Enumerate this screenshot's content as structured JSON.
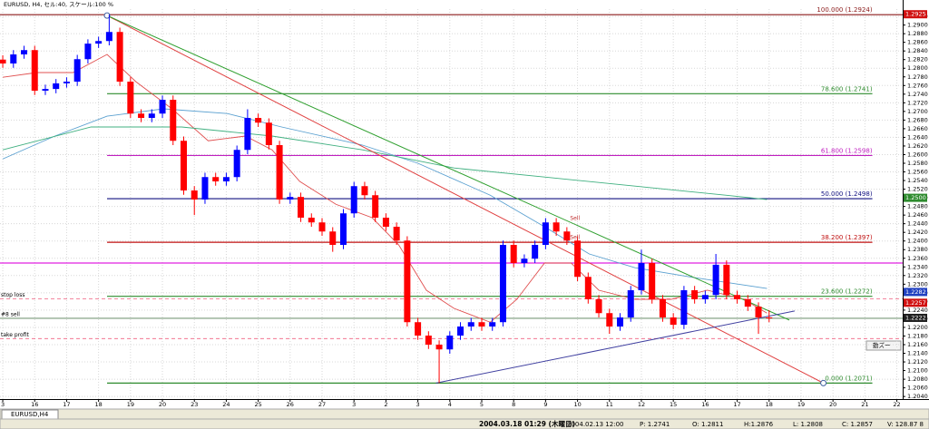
{
  "chart_data": {
    "type": "candlestick",
    "title": "EURUSD, H4, セル:40, スケール:100 %",
    "x": [
      0,
      1,
      2,
      3,
      4,
      5,
      6,
      7,
      8,
      9,
      10,
      11,
      12,
      13,
      14,
      15,
      16,
      17,
      18,
      19,
      20,
      21,
      22,
      23,
      24,
      25,
      26,
      27,
      28,
      29,
      30,
      31,
      32,
      33,
      34,
      35,
      36,
      37,
      38,
      39,
      40,
      41,
      42,
      43,
      44,
      45,
      46,
      47,
      48,
      49,
      50,
      51,
      52,
      53,
      54,
      55,
      56,
      57,
      58,
      59,
      60,
      61,
      62,
      63,
      64,
      65,
      66,
      67,
      68,
      69,
      70,
      71,
      72
    ],
    "open": [
      1.282,
      1.2811,
      1.2832,
      1.2842,
      1.2748,
      1.2752,
      1.2765,
      1.2769,
      1.2821,
      1.2857,
      1.2863,
      1.2884,
      1.2769,
      1.2695,
      1.2685,
      1.2695,
      1.2727,
      1.2632,
      1.2517,
      1.2496,
      1.2548,
      1.2538,
      1.2548,
      1.2611,
      1.2685,
      1.2674,
      1.2622,
      1.2496,
      1.2502,
      1.2454,
      1.2443,
      1.2422,
      1.2391,
      1.2464,
      1.2527,
      1.2506,
      1.2454,
      1.2433,
      1.2401,
      1.2212,
      1.2181,
      1.216,
      1.2149,
      1.2181,
      1.2202,
      1.2212,
      1.2202,
      1.2212,
      1.2391,
      1.2349,
      1.2359,
      1.2391,
      1.2443,
      1.2422,
      1.2401,
      1.2317,
      1.2265,
      1.2233,
      1.2202,
      1.2223,
      1.2286,
      1.2349,
      1.2265,
      1.2223,
      1.2206,
      1.2286,
      1.2265,
      1.2275,
      1.2345,
      1.2275,
      1.2265,
      1.2248,
      1.2223
    ],
    "high": [
      1.283,
      1.2842,
      1.2852,
      1.2852,
      1.2762,
      1.2775,
      1.2779,
      1.2831,
      1.2867,
      1.2873,
      1.2924,
      1.2894,
      1.2779,
      1.2705,
      1.2705,
      1.2737,
      1.2737,
      1.2642,
      1.2527,
      1.2558,
      1.2558,
      1.2558,
      1.2621,
      1.2705,
      1.2695,
      1.2684,
      1.2632,
      1.2512,
      1.2512,
      1.2464,
      1.2453,
      1.2432,
      1.2474,
      1.2537,
      1.2537,
      1.2516,
      1.2464,
      1.2443,
      1.2411,
      1.2222,
      1.2191,
      1.217,
      1.2191,
      1.2212,
      1.2222,
      1.2222,
      1.2222,
      1.2401,
      1.2401,
      1.2369,
      1.2401,
      1.2453,
      1.2453,
      1.2432,
      1.2411,
      1.2327,
      1.2275,
      1.2243,
      1.2233,
      1.2296,
      1.238,
      1.2359,
      1.2275,
      1.2233,
      1.2296,
      1.2296,
      1.2285,
      1.237,
      1.2355,
      1.2285,
      1.2275,
      1.2258,
      1.224
    ],
    "low": [
      1.2801,
      1.2801,
      1.2822,
      1.2738,
      1.2738,
      1.2742,
      1.2755,
      1.2759,
      1.2811,
      1.2847,
      1.2853,
      1.2759,
      1.2685,
      1.2675,
      1.2675,
      1.2685,
      1.2622,
      1.2507,
      1.246,
      1.2486,
      1.2528,
      1.2528,
      1.2538,
      1.2601,
      1.2664,
      1.2612,
      1.2486,
      1.2486,
      1.2444,
      1.2433,
      1.2412,
      1.2375,
      1.2381,
      1.2454,
      1.2496,
      1.2444,
      1.2423,
      1.2391,
      1.2202,
      1.2171,
      1.215,
      1.2071,
      1.2139,
      1.2171,
      1.2192,
      1.2192,
      1.2192,
      1.2202,
      1.2339,
      1.2339,
      1.2349,
      1.2381,
      1.2412,
      1.2391,
      1.2307,
      1.2255,
      1.2223,
      1.2185,
      1.2192,
      1.2213,
      1.2276,
      1.2255,
      1.2213,
      1.2196,
      1.2196,
      1.2255,
      1.2255,
      1.2265,
      1.2265,
      1.2255,
      1.2238,
      1.2185,
      1.2212
    ],
    "close": [
      1.2811,
      1.2832,
      1.2842,
      1.2748,
      1.2752,
      1.2765,
      1.2769,
      1.2821,
      1.2857,
      1.2863,
      1.2884,
      1.2769,
      1.2695,
      1.2685,
      1.2695,
      1.2727,
      1.2632,
      1.2517,
      1.2496,
      1.2548,
      1.2538,
      1.2548,
      1.2611,
      1.2685,
      1.2674,
      1.2622,
      1.2496,
      1.2502,
      1.2454,
      1.2443,
      1.2422,
      1.2391,
      1.2464,
      1.2527,
      1.2506,
      1.2454,
      1.2433,
      1.2401,
      1.2212,
      1.2181,
      1.216,
      1.2149,
      1.2181,
      1.2202,
      1.2212,
      1.2202,
      1.2212,
      1.2391,
      1.2349,
      1.2359,
      1.2391,
      1.2443,
      1.2422,
      1.2401,
      1.2317,
      1.2265,
      1.2233,
      1.2202,
      1.2223,
      1.2286,
      1.2349,
      1.2265,
      1.2223,
      1.2206,
      1.2286,
      1.2265,
      1.2275,
      1.2345,
      1.2275,
      1.2265,
      1.2248,
      1.2223,
      1.2222
    ],
    "up_color": "#0000ff",
    "down_color": "#ff0000",
    "xlim": [
      -0.26,
      84.55
    ],
    "xticks": [
      {
        "value": 0,
        "label": "3"
      },
      {
        "value": 3,
        "label": "16"
      },
      {
        "value": 6,
        "label": "17"
      },
      {
        "value": 9,
        "label": "18"
      },
      {
        "value": 12,
        "label": "19"
      },
      {
        "value": 15,
        "label": "20"
      },
      {
        "value": 18,
        "label": "23"
      },
      {
        "value": 21,
        "label": "24"
      },
      {
        "value": 24,
        "label": "25"
      },
      {
        "value": 27,
        "label": "26"
      },
      {
        "value": 30,
        "label": "27"
      },
      {
        "value": 33,
        "label": "3"
      },
      {
        "value": 36,
        "label": "2"
      },
      {
        "value": 39,
        "label": "3"
      },
      {
        "value": 42,
        "label": "4"
      },
      {
        "value": 45,
        "label": "5"
      },
      {
        "value": 48,
        "label": "8"
      },
      {
        "value": 51,
        "label": "9"
      },
      {
        "value": 54,
        "label": "10"
      },
      {
        "value": 57,
        "label": "11"
      },
      {
        "value": 60,
        "label": "12"
      },
      {
        "value": 63,
        "label": "15"
      },
      {
        "value": 66,
        "label": "16"
      },
      {
        "value": 69,
        "label": "17"
      },
      {
        "value": 72,
        "label": "18"
      },
      {
        "value": 75,
        "label": "19"
      },
      {
        "value": 78,
        "label": "20"
      },
      {
        "value": 81,
        "label": "21"
      },
      {
        "value": 84,
        "label": "22"
      }
    ],
    "ylim": [
      1.2034,
      1.2937
    ],
    "yticks": [
      {
        "value": 1.204,
        "label": "1.2040"
      },
      {
        "value": 1.206,
        "label": "1.2060"
      },
      {
        "value": 1.208,
        "label": "1.2080"
      },
      {
        "value": 1.21,
        "label": "1.2100"
      },
      {
        "value": 1.212,
        "label": "1.2120"
      },
      {
        "value": 1.214,
        "label": "1.2140"
      },
      {
        "value": 1.216,
        "label": "1.2160"
      },
      {
        "value": 1.218,
        "label": "1.2180"
      },
      {
        "value": 1.22,
        "label": "1.2200"
      },
      {
        "value": 1.222,
        "label": "1.2220"
      },
      {
        "value": 1.224,
        "label": "1.2240"
      },
      {
        "value": 1.226,
        "label": "1.2260"
      },
      {
        "value": 1.228,
        "label": "1.2280"
      },
      {
        "value": 1.23,
        "label": "1.2300"
      },
      {
        "value": 1.232,
        "label": "1.2320"
      },
      {
        "value": 1.234,
        "label": "1.2340"
      },
      {
        "value": 1.236,
        "label": "1.2360"
      },
      {
        "value": 1.238,
        "label": "1.2380"
      },
      {
        "value": 1.24,
        "label": "1.2400"
      },
      {
        "value": 1.242,
        "label": "1.2420"
      },
      {
        "value": 1.244,
        "label": "1.2440"
      },
      {
        "value": 1.246,
        "label": "1.2460"
      },
      {
        "value": 1.248,
        "label": "1.2480"
      },
      {
        "value": 1.25,
        "label": "1.2500"
      },
      {
        "value": 1.252,
        "label": "1.2520"
      },
      {
        "value": 1.254,
        "label": "1.2540"
      },
      {
        "value": 1.256,
        "label": "1.2560"
      },
      {
        "value": 1.258,
        "label": "1.2580"
      },
      {
        "value": 1.26,
        "label": "1.2600"
      },
      {
        "value": 1.262,
        "label": "1.2620"
      },
      {
        "value": 1.264,
        "label": "1.2640"
      },
      {
        "value": 1.266,
        "label": "1.2660"
      },
      {
        "value": 1.268,
        "label": "1.2680"
      },
      {
        "value": 1.27,
        "label": "1.2700"
      },
      {
        "value": 1.272,
        "label": "1.2720"
      },
      {
        "value": 1.274,
        "label": "1.2740"
      },
      {
        "value": 1.276,
        "label": "1.2760"
      },
      {
        "value": 1.278,
        "label": "1.2780"
      },
      {
        "value": 1.28,
        "label": "1.2800"
      },
      {
        "value": 1.282,
        "label": "1.2820"
      },
      {
        "value": 1.284,
        "label": "1.2840"
      },
      {
        "value": 1.286,
        "label": "1.2860"
      },
      {
        "value": 1.288,
        "label": "1.2880"
      },
      {
        "value": 1.29,
        "label": "1.2900"
      },
      {
        "value": 1.292,
        "label": "1.2920"
      }
    ],
    "grid": true,
    "lines": [
      {
        "color": "#e05050",
        "x": [
          0,
          3.2,
          6.6,
          9.8,
          12.5,
          15.9,
          19.3,
          22.8,
          25.3,
          27.9,
          31.3,
          34.7,
          37.2,
          39.8,
          42.4,
          45.8,
          48.3,
          50.9,
          53.4,
          56.0,
          59.4,
          62.8,
          66.2,
          69.6,
          71.8
        ],
        "values": [
          1.2779,
          1.279,
          1.279,
          1.2832,
          1.2769,
          1.2706,
          1.2632,
          1.2643,
          1.2611,
          1.2538,
          1.2485,
          1.2454,
          1.2391,
          1.2286,
          1.2244,
          1.2212,
          1.2265,
          1.2349,
          1.2349,
          1.2286,
          1.2265,
          1.2265,
          1.2286,
          1.2265,
          1.2233
        ]
      },
      {
        "color": "#5aa0d0",
        "x": [
          0,
          4.9,
          9.8,
          15.1,
          21.1,
          26.2,
          33.8,
          39.0,
          45.8,
          50.9,
          55.1,
          59.4,
          64.5,
          71.8
        ],
        "values": [
          1.259,
          1.2643,
          1.2689,
          1.2706,
          1.2695,
          1.2664,
          1.2622,
          1.258,
          1.2506,
          1.2433,
          1.237,
          1.2338,
          1.2317,
          1.229
        ]
      },
      {
        "color": "#40b080",
        "x": [
          0,
          8.3,
          16.8,
          25.3,
          33.8,
          42.4,
          50.9,
          59.4,
          67.9,
          71.8
        ],
        "values": [
          1.2611,
          1.2664,
          1.2664,
          1.2643,
          1.2611,
          1.2569,
          1.2548,
          1.2527,
          1.2506,
          1.2496
        ]
      }
    ],
    "trendlines": [
      {
        "color": "#e04040",
        "x": [
          9.8,
          77.1
        ],
        "values": [
          1.2922,
          1.2071
        ]
      },
      {
        "color": "#30a030",
        "x": [
          9.8,
          73.9
        ],
        "values": [
          1.2922,
          1.2217
        ]
      },
      {
        "color": "#4040a0",
        "x": [
          40.7,
          74.4
        ],
        "values": [
          1.2071,
          1.2238
        ]
      }
    ],
    "fib_x": [
      9.8,
      81.7
    ],
    "fib_levels": [
      {
        "label": "100.000 (1.2924)",
        "value": 1.2924,
        "color": "#8b1a1a"
      },
      {
        "label": "78.600 (1.2741)",
        "value": 1.2741,
        "color": "#2e8b2e"
      },
      {
        "label": "61.800 (1.2598)",
        "value": 1.2598,
        "color": "#c020c0"
      },
      {
        "label": "50.000 (1.2498)",
        "value": 1.2498,
        "color": "#101080"
      },
      {
        "label": "38.200 (1.2397)",
        "value": 1.2397,
        "color": "#c01010"
      },
      {
        "label": "23.600 (1.2272)",
        "value": 1.2272,
        "color": "#2e8b2e"
      },
      {
        "label": "0.000 (1.2071)",
        "value": 1.2071,
        "color": "#2e8b2e"
      }
    ],
    "hlines": [
      {
        "value": 1.2349,
        "color": "#e020e0",
        "dash": false
      },
      {
        "label": "stop loss",
        "value": 1.2266,
        "color": "#f06080",
        "dash": true
      },
      {
        "label": "#8 sell",
        "value": 1.2221,
        "color": "#7a9a7a",
        "dash": false
      },
      {
        "label": "take profit",
        "value": 1.2174,
        "color": "#f06080",
        "dash": true
      }
    ],
    "price_tags": [
      {
        "label": "1.2925",
        "value": 1.2925,
        "color": "#d01010"
      },
      {
        "label": "1.2500",
        "value": 1.25,
        "color": "#2e8b2e"
      },
      {
        "label": "1.2282",
        "value": 1.2282,
        "color": "#2040c0"
      },
      {
        "label": "1.2257",
        "value": 1.2257,
        "color": "#d01010"
      },
      {
        "label": "1.2222",
        "value": 1.2222,
        "color": "#202020"
      }
    ],
    "annotations": [
      {
        "text": "Sell",
        "x": 53.3,
        "y": 1.2452
      },
      {
        "text": "Sell",
        "x": 53.3,
        "y": 1.2408
      }
    ]
  },
  "ui": {
    "tab": "EURUSD,H4",
    "zoom": "動ズー",
    "status": [
      "2004.03.18 01:29 (木曜日)",
      "2004.02.13 12:00",
      "P: 1.2741",
      "O: 1.2811",
      "H:1.2876",
      "L: 1.2808",
      "C: 1.2857",
      "V: 128.87 8"
    ]
  }
}
